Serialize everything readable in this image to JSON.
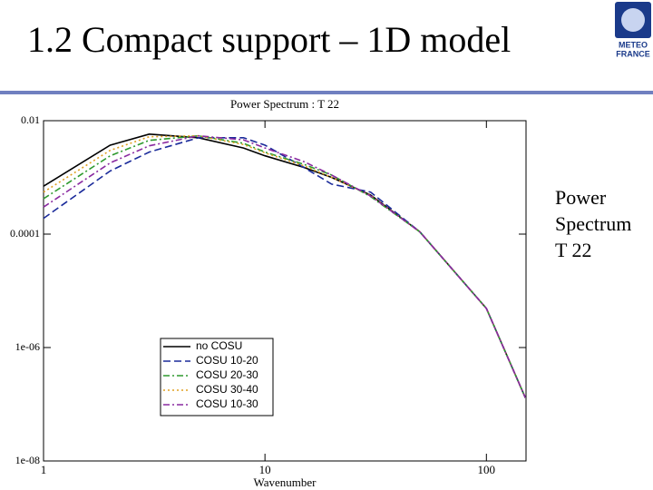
{
  "slide": {
    "title": "1.2 Compact support – 1D model",
    "side_text": [
      "Power",
      "Spectrum",
      "T 22"
    ],
    "logo": [
      "METEO",
      "FRANCE"
    ]
  },
  "chart_data": {
    "type": "line",
    "title": "Power Spectrum : T 22",
    "xlabel": "Wavenumber",
    "log_x": true,
    "log_y": true,
    "legend": "lower left",
    "x": [
      1,
      2,
      3,
      5,
      8,
      10,
      15,
      20,
      30,
      50,
      100,
      150
    ],
    "xlim": [
      1,
      151
    ],
    "xticks": [
      1,
      10,
      100
    ],
    "ylim": [
      1e-08,
      0.01
    ],
    "yticks": [
      0.01,
      0.0001,
      {
        "value": 1e-06,
        "label": "1e-06"
      },
      {
        "value": 1e-08,
        "label": "1e-08"
      }
    ],
    "series": [
      {
        "name": "no COSU",
        "color": "#000000",
        "dash": "solid",
        "values": [
          0.0007,
          0.0037,
          0.0058,
          0.005,
          0.0033,
          0.0024,
          0.0015,
          0.001,
          0.00049,
          0.00011,
          4.9e-06,
          1.3e-07
        ]
      },
      {
        "name": "COSU 10-20",
        "color": "#1a2a9a",
        "dash": "dashed",
        "values": [
          0.00019,
          0.0013,
          0.0028,
          0.005,
          0.005,
          0.0037,
          0.0015,
          0.00076,
          0.00055,
          0.00011,
          4.9e-06,
          1.3e-07
        ]
      },
      {
        "name": "COSU 20-30",
        "color": "#2e9a2e",
        "dash": "dashdot",
        "values": [
          0.00042,
          0.0024,
          0.0045,
          0.0054,
          0.004,
          0.0028,
          0.0017,
          0.0011,
          0.00046,
          0.00011,
          4.9e-06,
          1.3e-07
        ]
      },
      {
        "name": "COSU 30-40",
        "color": "#e0a020",
        "dash": "dotted",
        "values": [
          0.00055,
          0.003,
          0.0052,
          0.0054,
          0.0038,
          0.0027,
          0.0016,
          0.001,
          0.00048,
          0.00011,
          4.9e-06,
          1.3e-07
        ]
      },
      {
        "name": "COSU 10-30",
        "color": "#8a2aa0",
        "dash": "dashdot",
        "values": [
          0.0003,
          0.0018,
          0.0036,
          0.0054,
          0.0046,
          0.0033,
          0.0019,
          0.0011,
          0.00047,
          0.00011,
          4.9e-06,
          1.3e-07
        ]
      }
    ]
  }
}
